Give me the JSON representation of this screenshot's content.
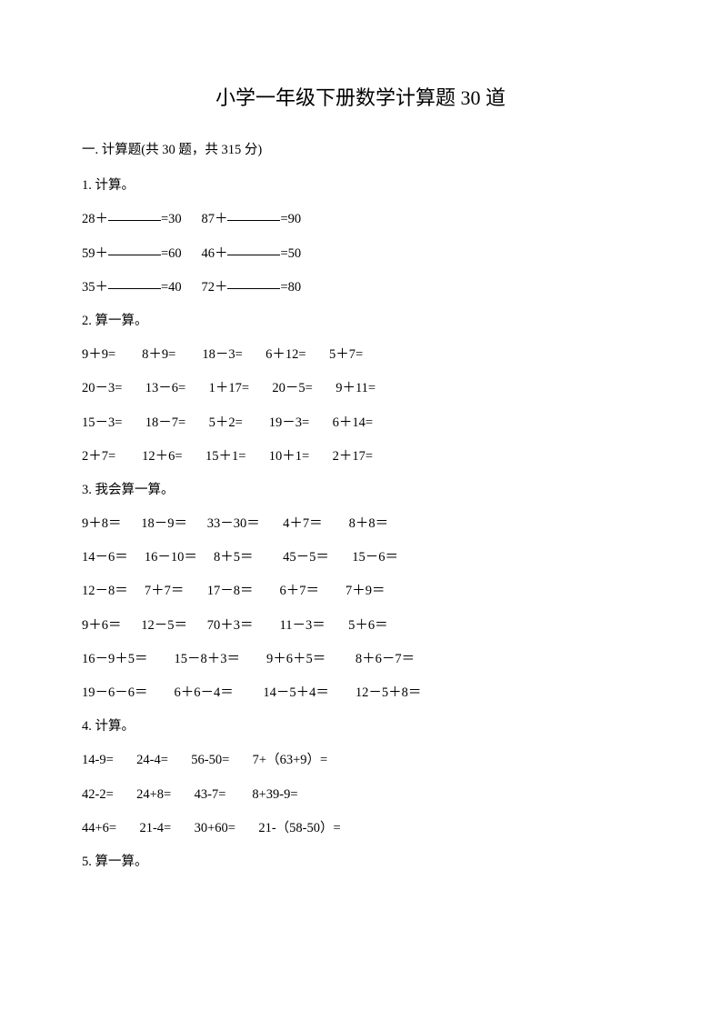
{
  "title": "小学一年级下册数学计算题 30 道",
  "section_header": "一. 计算题(共 30 题，共 315 分)",
  "p1": {
    "label": "1. 计算。",
    "rows": [
      [
        {
          "pre": "28＋",
          "post": "=30"
        },
        {
          "pre": "87＋",
          "post": "=90"
        }
      ],
      [
        {
          "pre": "59＋",
          "post": "=60"
        },
        {
          "pre": "46＋",
          "post": "=50"
        }
      ],
      [
        {
          "pre": "35＋",
          "post": "=40"
        },
        {
          "pre": "72＋",
          "post": "=80"
        }
      ]
    ]
  },
  "p2": {
    "label": "2. 算一算。",
    "rows": [
      [
        "9＋9=",
        "8＋9=",
        "18－3=",
        "6＋12=",
        "5＋7="
      ],
      [
        "20－3=",
        "13－6=",
        "1＋17=",
        "20－5=",
        "9＋11="
      ],
      [
        "15－3=",
        "18－7=",
        "5＋2=",
        "19－3=",
        "6＋14="
      ],
      [
        "2＋7=",
        "12＋6=",
        "15＋1=",
        "10＋1=",
        "2＋17="
      ]
    ]
  },
  "p3": {
    "label": "3. 我会算一算。",
    "rows": [
      [
        "9＋8＝",
        "18－9＝",
        "33－30＝",
        "4＋7＝",
        "8＋8＝"
      ],
      [
        "14－6＝",
        "16－10＝",
        "8＋5＝",
        "45－5＝",
        "15－6＝"
      ],
      [
        "12－8＝",
        "7＋7＝",
        "17－8＝",
        "6＋7＝",
        "7＋9＝"
      ],
      [
        "9＋6＝",
        "12－5＝",
        "70＋3＝",
        "11－3＝",
        "5＋6＝"
      ],
      [
        "16－9＋5＝",
        "15－8＋3＝",
        "9＋6＋5＝",
        "8＋6－7＝"
      ],
      [
        "19－6－6＝",
        "6＋6－4＝",
        "14－5＋4＝",
        "12－5＋8＝"
      ]
    ]
  },
  "p4": {
    "label": "4. 计算。",
    "rows": [
      [
        "14-9=",
        "24-4=",
        "56-50=",
        "7+（63+9）="
      ],
      [
        "42-2=",
        "24+8=",
        "43-7=",
        "8+39-9="
      ],
      [
        "44+6=",
        "21-4=",
        "30+60=",
        "21-（58-50）="
      ]
    ]
  },
  "p5": {
    "label": "5. 算一算。"
  },
  "layout": {
    "p1_col_gap": "      ",
    "p2_col_widths": [
      12,
      12,
      12,
      12,
      10
    ],
    "p3_col_widths_5": [
      10,
      11,
      13,
      12,
      10
    ],
    "p3_col_widths_4": [
      15,
      15,
      15,
      12
    ],
    "p4_col_widths": [
      12,
      12,
      13,
      18
    ]
  }
}
